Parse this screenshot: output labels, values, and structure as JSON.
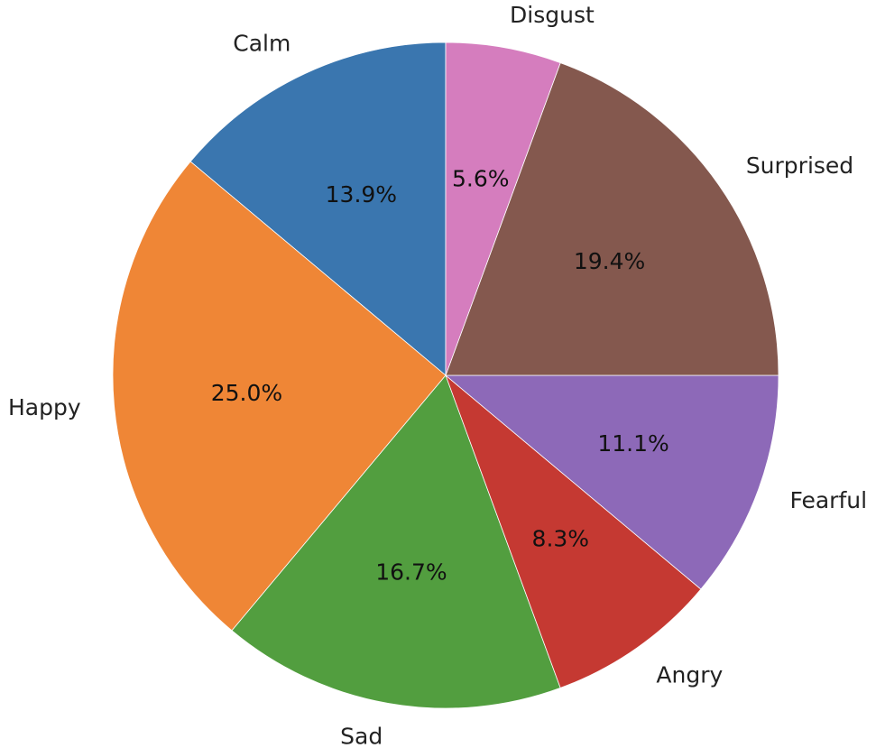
{
  "chart_data": {
    "type": "pie",
    "title": "",
    "start_angle_deg": 90,
    "direction": "counterclockwise",
    "slices": [
      {
        "label": "Calm",
        "value": 13.9,
        "pct_label": "13.9%",
        "color": "#3A76AF"
      },
      {
        "label": "Happy",
        "value": 25.0,
        "pct_label": "25.0%",
        "color": "#EF8636"
      },
      {
        "label": "Sad",
        "value": 16.7,
        "pct_label": "16.7%",
        "color": "#529E3F"
      },
      {
        "label": "Angry",
        "value": 8.3,
        "pct_label": "8.3%",
        "color": "#C53932"
      },
      {
        "label": "Fearful",
        "value": 11.1,
        "pct_label": "11.1%",
        "color": "#8D69B8"
      },
      {
        "label": "Surprised",
        "value": 19.4,
        "pct_label": "19.4%",
        "color": "#84584E"
      },
      {
        "label": "Disgust",
        "value": 5.6,
        "pct_label": "5.6%",
        "color": "#D57DBE"
      }
    ]
  }
}
